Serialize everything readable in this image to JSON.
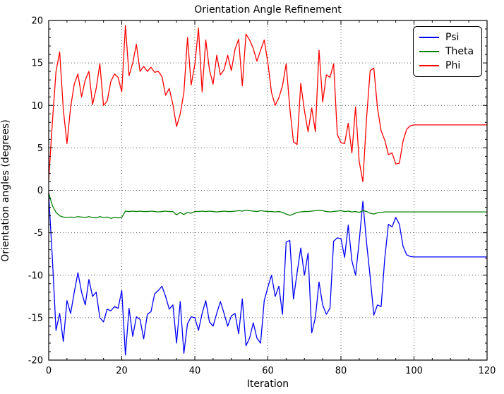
{
  "chart_data": {
    "type": "line",
    "title": "Orientation Angle Refinement",
    "xlabel": "Iteration",
    "ylabel": "Orientation angles (degrees)",
    "xlim": [
      0,
      120
    ],
    "ylim": [
      -20,
      20
    ],
    "x_major_ticks": [
      0,
      20,
      40,
      60,
      80,
      100,
      120
    ],
    "x_tick_labels": [
      "0",
      "20",
      "40",
      "60",
      "80",
      "100",
      "120"
    ],
    "x_minor_step": 5,
    "y_major_ticks": [
      -20,
      -15,
      -10,
      -5,
      0,
      5,
      10,
      15,
      20
    ],
    "y_tick_labels": [
      "-20",
      "-15",
      "-10",
      "-5",
      "0",
      "5",
      "10",
      "15",
      "20"
    ],
    "y_minor_step": 1,
    "grid": "dotted-major-both",
    "background_color": "#ffffff",
    "axes_color": "#000000",
    "grid_color": "#555555",
    "x_start": 0,
    "x_step": 1,
    "legend": {
      "position": "upper-right",
      "entries": [
        {
          "label": "Psi",
          "color": "#0000ff"
        },
        {
          "label": "Theta",
          "color": "#008000"
        },
        {
          "label": "Phi",
          "color": "#ff0000"
        }
      ]
    },
    "series": [
      {
        "name": "Psi",
        "color": "#0000ff",
        "values": [
          -0.5,
          -8.0,
          -16.5,
          -14.5,
          -17.8,
          -13.0,
          -14.5,
          -12.0,
          -9.7,
          -12.0,
          -13.5,
          -10.5,
          -12.5,
          -12.0,
          -15.0,
          -15.5,
          -14.0,
          -14.2,
          -13.7,
          -13.9,
          -11.8,
          -19.4,
          -13.9,
          -17.2,
          -14.9,
          -15.2,
          -17.5,
          -14.6,
          -14.3,
          -12.2,
          -11.8,
          -11.3,
          -12.5,
          -14.0,
          -13.5,
          -18.0,
          -13.1,
          -19.2,
          -15.7,
          -14.9,
          -15.0,
          -16.5,
          -14.5,
          -13.0,
          -15.5,
          -16.0,
          -14.5,
          -13.1,
          -14.5,
          -16.0,
          -14.8,
          -14.5,
          -16.9,
          -12.8,
          -18.3,
          -17.4,
          -15.6,
          -17.4,
          -18.0,
          -13.0,
          -11.4,
          -10.0,
          -12.5,
          -11.3,
          -14.6,
          -6.1,
          -5.9,
          -12.8,
          -9.7,
          -6.8,
          -10.0,
          -7.4,
          -16.8,
          -15.0,
          -10.8,
          -13.5,
          -14.6,
          -13.9,
          -6.0,
          -5.6,
          -5.7,
          -7.9,
          -4.1,
          -8.3,
          -10.0,
          -6.0,
          -1.3,
          -6.1,
          -10.2,
          -14.7,
          -13.5,
          -13.7,
          -8.0,
          -4.0,
          -4.3,
          -3.2,
          -4.0,
          -6.6,
          -7.6,
          -7.8,
          -7.85,
          -7.85,
          -7.85,
          -7.85,
          -7.85,
          -7.85,
          -7.85,
          -7.85,
          -7.85,
          -7.85,
          -7.85,
          -7.85,
          -7.85,
          -7.85,
          -7.85,
          -7.85,
          -7.85,
          -7.85,
          -7.85,
          -7.85,
          -7.85
        ]
      },
      {
        "name": "Theta",
        "color": "#008000",
        "values": [
          -0.3,
          -1.8,
          -2.6,
          -3.0,
          -3.15,
          -3.2,
          -3.15,
          -3.2,
          -3.1,
          -3.15,
          -3.2,
          -3.1,
          -3.2,
          -3.25,
          -3.1,
          -3.2,
          -3.15,
          -3.3,
          -3.2,
          -3.25,
          -3.2,
          -2.45,
          -2.5,
          -2.45,
          -2.5,
          -2.45,
          -2.5,
          -2.5,
          -2.45,
          -2.5,
          -2.55,
          -2.5,
          -2.45,
          -2.5,
          -2.5,
          -2.9,
          -2.6,
          -2.85,
          -2.6,
          -2.7,
          -2.5,
          -2.5,
          -2.45,
          -2.5,
          -2.45,
          -2.5,
          -2.55,
          -2.5,
          -2.45,
          -2.5,
          -2.5,
          -2.45,
          -2.4,
          -2.45,
          -2.35,
          -2.4,
          -2.45,
          -2.5,
          -2.4,
          -2.45,
          -2.5,
          -2.5,
          -2.55,
          -2.5,
          -2.6,
          -2.8,
          -2.95,
          -2.8,
          -2.6,
          -2.55,
          -2.5,
          -2.5,
          -2.45,
          -2.4,
          -2.35,
          -2.4,
          -2.5,
          -2.55,
          -2.5,
          -2.45,
          -2.4,
          -2.5,
          -2.45,
          -2.55,
          -2.5,
          -2.6,
          -2.4,
          -2.5,
          -2.7,
          -2.8,
          -2.65,
          -2.6,
          -2.55,
          -2.55,
          -2.55,
          -2.55,
          -2.55,
          -2.55,
          -2.55,
          -2.55,
          -2.55,
          -2.55,
          -2.55,
          -2.55,
          -2.55,
          -2.55,
          -2.55,
          -2.55,
          -2.55,
          -2.55,
          -2.55,
          -2.55,
          -2.55,
          -2.55,
          -2.55,
          -2.55,
          -2.55,
          -2.55,
          -2.55,
          -2.55,
          -2.55
        ]
      },
      {
        "name": "Phi",
        "color": "#ff0000",
        "values": [
          1.2,
          8.0,
          14.0,
          16.3,
          9.5,
          5.5,
          9.8,
          12.5,
          13.7,
          11.0,
          13.0,
          14.0,
          10.1,
          12.0,
          14.9,
          10.0,
          10.5,
          12.8,
          13.7,
          13.3,
          11.6,
          19.4,
          13.5,
          15.0,
          17.2,
          14.0,
          14.6,
          14.0,
          14.5,
          13.9,
          14.0,
          13.4,
          11.2,
          12.0,
          10.1,
          7.5,
          9.0,
          11.5,
          18.0,
          12.4,
          14.8,
          19.1,
          11.6,
          17.7,
          14.2,
          12.5,
          15.9,
          13.6,
          14.2,
          15.9,
          14.1,
          16.6,
          17.8,
          12.3,
          18.4,
          17.7,
          16.7,
          15.2,
          16.5,
          17.7,
          15.0,
          11.5,
          10.0,
          10.9,
          12.3,
          14.9,
          9.7,
          5.7,
          5.4,
          12.6,
          9.4,
          6.9,
          9.7,
          6.9,
          16.5,
          10.4,
          13.6,
          13.3,
          14.9,
          6.6,
          5.6,
          5.5,
          7.9,
          4.4,
          9.8,
          3.4,
          1.0,
          8.4,
          14.1,
          14.4,
          9.7,
          7.0,
          5.9,
          4.2,
          4.4,
          3.1,
          3.2,
          5.8,
          7.2,
          7.6,
          7.7,
          7.7,
          7.7,
          7.7,
          7.7,
          7.7,
          7.7,
          7.7,
          7.7,
          7.7,
          7.7,
          7.7,
          7.7,
          7.7,
          7.7,
          7.7,
          7.7,
          7.7,
          7.7,
          7.7,
          7.7
        ]
      }
    ]
  }
}
